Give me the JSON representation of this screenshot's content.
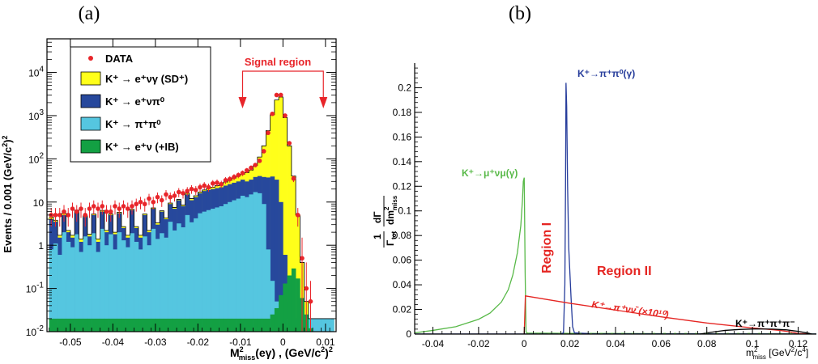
{
  "chart_data": [
    {
      "type": "histogram",
      "panel_label": "(a)",
      "xlabel": "M²miss(eγ) , (GeV/c²)²",
      "xlabel_parts": {
        "base": "M",
        "sup": "2",
        "sub": "miss",
        "rest": "(eγ) , (GeV/c",
        "sup2": "2",
        "end": ")",
        "sup3": "2"
      },
      "ylabel": "Events / 0.001 (GeV/c²)²",
      "xlim": [
        -0.0555,
        0.0125
      ],
      "ylim": [
        0.01,
        60000
      ],
      "yscale": "log",
      "x_ticks": [
        "-0.05",
        "-0.04",
        "-0.03",
        "-0.02",
        "-0.01",
        "0",
        "0.01"
      ],
      "y_ticks": [
        "10⁻²",
        "10⁻¹",
        "1",
        "10",
        "10²",
        "10³",
        "10⁴"
      ],
      "signal_region": {
        "label": "Signal region",
        "x_from": -0.0095,
        "x_to": 0.0095
      },
      "legend_position": "top-left",
      "legend": [
        {
          "label": "DATA",
          "kind": "marker",
          "color": "#e8252a"
        },
        {
          "label": "K⁺ → e⁺νγ (SD⁺)",
          "kind": "box",
          "color": "#ffff1a"
        },
        {
          "label": "K⁺ → e⁺νπ⁰",
          "kind": "box",
          "color": "#27489c"
        },
        {
          "label": "K⁺ → π⁺π⁰",
          "kind": "box",
          "color": "#55c6e0"
        },
        {
          "label": "K⁺ → e⁺ν (+IB)",
          "kind": "box",
          "color": "#13a043"
        }
      ],
      "stack_colors": {
        "sd": "#ffff1a",
        "e3": "#27489c",
        "pipi": "#55c6e0",
        "ke2": "#13a043"
      },
      "bins": {
        "start": -0.055,
        "width": 0.001
      },
      "series": [
        {
          "name": "K⁺ → π⁺π⁰",
          "values": [
            0.8,
            1.1,
            0.6,
            2,
            1.2,
            0.9,
            1.8,
            0.7,
            1.6,
            1,
            1.9,
            0.7,
            2.4,
            1,
            1.8,
            0.8,
            2,
            1.3,
            0.9,
            1.9,
            1.2,
            0.8,
            1.6,
            1,
            2.4,
            1.4,
            1.9,
            1.5,
            3.5,
            2.2,
            3.2,
            2.6,
            5,
            3.4,
            4.2,
            5.5,
            6,
            6.5,
            7,
            7.5,
            8,
            9,
            10,
            11,
            12,
            14,
            13,
            15,
            17,
            16,
            9,
            0.8,
            0.15,
            0.05,
            0.03,
            0.02,
            0.02,
            0.02,
            0.02,
            0.02,
            0.02,
            0.02,
            0.02,
            0.02,
            0.02,
            0.02,
            0.02
          ]
        },
        {
          "name": "K⁺ → e⁺νπ⁰",
          "values": [
            4,
            3.5,
            1.5,
            5,
            2,
            1.5,
            6,
            1.2,
            4.5,
            1.6,
            5,
            1.2,
            6,
            2,
            5,
            1.8,
            5.5,
            2.5,
            1.5,
            6.5,
            2.5,
            1.5,
            5,
            2,
            7,
            3,
            6,
            4,
            9,
            7,
            11,
            8,
            15,
            11,
            13,
            16,
            18,
            19,
            20,
            21,
            22,
            24,
            26,
            28,
            30,
            33,
            30,
            33,
            38,
            40,
            38,
            37,
            39,
            33,
            10,
            0.6,
            0.05,
            0.02,
            0.02,
            0.02,
            0.02,
            0.02,
            0.02,
            0.02,
            0.02,
            0.02,
            0.02
          ]
        },
        {
          "name": "K⁺ → e⁺νγ (SD⁺)",
          "values": [
            4.5,
            3.8,
            1.7,
            5.5,
            2.2,
            1.7,
            6.5,
            1.4,
            4.8,
            1.8,
            5.3,
            1.4,
            6.4,
            2.2,
            5.3,
            2,
            5.8,
            2.7,
            1.7,
            6.8,
            2.7,
            1.7,
            5.3,
            2.2,
            7.3,
            3.3,
            6.3,
            4.3,
            9.5,
            7.5,
            11.5,
            8.5,
            16,
            12,
            14,
            17,
            19,
            21,
            22,
            24,
            26,
            29,
            32,
            36,
            40,
            44,
            48,
            55,
            70,
            110,
            200,
            450,
            1050,
            2300,
            2700,
            900,
            200,
            40,
            5,
            0.4,
            0.05,
            0.02,
            0.02,
            0.02,
            0.02,
            0.02,
            0.02
          ]
        },
        {
          "name": "K⁺ → e⁺ν (+IB)",
          "values": [
            0.02,
            0.02,
            0.02,
            0.02,
            0.02,
            0.02,
            0.02,
            0.02,
            0.02,
            0.02,
            0.02,
            0.02,
            0.02,
            0.02,
            0.02,
            0.02,
            0.02,
            0.02,
            0.02,
            0.02,
            0.02,
            0.02,
            0.02,
            0.02,
            0.02,
            0.02,
            0.02,
            0.02,
            0.02,
            0.02,
            0.02,
            0.02,
            0.02,
            0.02,
            0.02,
            0.02,
            0.02,
            0.02,
            0.02,
            0.02,
            0.02,
            0.02,
            0.02,
            0.02,
            0.02,
            0.02,
            0.02,
            0.02,
            0.02,
            0.02,
            0.02,
            0.02,
            0.025,
            0.035,
            0.07,
            0.13,
            0.2,
            0.29,
            0.17,
            0.06,
            0.025,
            0.012,
            0.01,
            0.01,
            0.01,
            0.01,
            0.01
          ]
        },
        {
          "name": "DATA",
          "x": [
            -0.0545,
            -0.0535,
            -0.0525,
            -0.0515,
            -0.0505,
            -0.0495,
            -0.0485,
            -0.0475,
            -0.0465,
            -0.0455,
            -0.0445,
            -0.0435,
            -0.0425,
            -0.0415,
            -0.0405,
            -0.0395,
            -0.0385,
            -0.0375,
            -0.0365,
            -0.0355,
            -0.0345,
            -0.0335,
            -0.0325,
            -0.0315,
            -0.0305,
            -0.0295,
            -0.0285,
            -0.0275,
            -0.0265,
            -0.0255,
            -0.0245,
            -0.0235,
            -0.0225,
            -0.0215,
            -0.0205,
            -0.0195,
            -0.0185,
            -0.0175,
            -0.0165,
            -0.0155,
            -0.0145,
            -0.0135,
            -0.0125,
            -0.0115,
            -0.0105,
            -0.0095,
            -0.0085,
            -0.0075,
            -0.0065,
            -0.0055,
            -0.0045,
            -0.0035,
            -0.0025,
            -0.0015,
            -0.0005,
            0.0005,
            0.0015,
            0.0025,
            0.0035,
            0.0045,
            0.0055,
            0.0065
          ],
          "values": [
            5,
            5,
            5,
            6,
            5,
            7,
            6,
            7,
            5,
            7,
            8,
            7,
            8,
            6,
            6,
            8,
            7,
            8,
            7,
            8,
            9,
            10,
            9,
            12,
            10,
            13,
            11,
            15,
            13,
            14,
            17,
            16,
            18,
            20,
            19,
            22,
            24,
            22,
            27,
            28,
            26,
            32,
            34,
            38,
            42,
            47,
            54,
            62,
            72,
            90,
            150,
            400,
            1100,
            3000,
            3000,
            1000,
            230,
            35,
            5,
            0.5,
            0.1,
            0.05
          ],
          "err_lo": [
            2.3,
            2.3,
            2.3,
            2.5,
            2.3,
            2.7,
            2.5,
            2.7,
            2.3,
            2.7,
            2.9,
            2.7,
            2.9,
            2.5,
            2.5,
            2.9,
            2.7,
            2.9,
            2.7,
            2.9,
            3,
            3.2,
            3,
            3.5,
            3.2,
            3.6,
            3.3,
            3.9,
            3.6,
            3.7,
            4.1,
            4,
            4.2,
            4.5,
            4.4,
            4.7,
            4.9,
            4.7,
            5.2,
            5.3,
            5.1,
            5.7,
            5.8,
            6.2,
            6.5,
            6.9,
            7.3,
            7.9,
            8.5,
            9.5,
            12,
            20,
            33,
            55,
            55,
            32,
            15,
            6,
            2.3,
            0.5,
            0.1,
            0.05
          ],
          "err_hi": [
            2.3,
            2.3,
            2.3,
            2.5,
            2.3,
            2.7,
            2.5,
            2.7,
            2.3,
            2.7,
            2.9,
            2.7,
            2.9,
            2.5,
            2.5,
            2.9,
            2.7,
            2.9,
            2.7,
            2.9,
            3,
            3.2,
            3,
            3.5,
            3.2,
            3.6,
            3.3,
            3.9,
            3.6,
            3.7,
            4.1,
            4,
            4.2,
            4.5,
            4.4,
            4.7,
            4.9,
            4.7,
            5.2,
            5.3,
            5.1,
            5.7,
            5.8,
            6.2,
            6.5,
            6.9,
            7.3,
            7.9,
            8.5,
            9.5,
            12,
            20,
            33,
            55,
            55,
            32,
            15,
            6,
            2.3,
            1,
            0.3,
            0.1
          ]
        }
      ]
    },
    {
      "type": "line",
      "panel_label": "(b)",
      "xlabel": "m²miss [GeV²/c⁴]",
      "xlabel_parts": {
        "base": "m",
        "sup": "2",
        "sub": "miss",
        "rest": " [GeV",
        "sup2": "2",
        "mid": "/c",
        "sup3": "4",
        "end": "]"
      },
      "ylabel": "1/Γtot dΓ/dm²miss",
      "xlim": [
        -0.048,
        0.128
      ],
      "ylim": [
        0,
        0.22
      ],
      "x_ticks": [
        -0.04,
        -0.02,
        0,
        0.02,
        0.04,
        0.06,
        0.08,
        0.1,
        0.12
      ],
      "y_ticks": [
        0,
        0.02,
        0.04,
        0.06,
        0.08,
        0.1,
        0.12,
        0.14,
        0.16,
        0.18,
        0.2
      ],
      "region_labels": {
        "region1": "Region I",
        "region2": "Region II"
      },
      "colors": {
        "kmu2": "#58b948",
        "k2pi": "#263c9b",
        "pnn": "#e52522",
        "k3pi": "#000000"
      },
      "series": [
        {
          "name": "K⁺→μ⁺νμ(γ)",
          "color": "#58b948",
          "x": [
            -0.048,
            -0.04,
            -0.03,
            -0.02,
            -0.015,
            -0.01,
            -0.007,
            -0.005,
            -0.003,
            -0.0015,
            -0.0008,
            -0.0004,
            0,
            0.0004,
            0.0008,
            0.0015,
            0.02,
            0.05,
            0.1,
            0.128
          ],
          "values": [
            0.001,
            0.003,
            0.006,
            0.012,
            0.017,
            0.026,
            0.036,
            0.048,
            0.066,
            0.088,
            0.108,
            0.124,
            0.127,
            0.05,
            0.0015,
            0.0008,
            0.0006,
            0.0004,
            0.0002,
            0.0001
          ]
        },
        {
          "name": "K⁺→π⁺π⁰(γ)",
          "color": "#263c9b",
          "x": [
            -0.048,
            0.016,
            0.0172,
            0.0178,
            0.0181,
            0.0183,
            0.0186,
            0.019,
            0.0195,
            0.0205,
            0.0212,
            0.022,
            0.03,
            0.128
          ],
          "values": [
            0.0001,
            0.0001,
            0.001,
            0.04,
            0.12,
            0.204,
            0.185,
            0.12,
            0.07,
            0.03,
            0.006,
            0.001,
            0.0002,
            0.0001
          ]
        },
        {
          "name": "K⁺→π⁺νν̄ (×10¹⁰)",
          "color": "#e52522",
          "x": [
            0,
            0.0005,
            0.02,
            0.04,
            0.06,
            0.08,
            0.1,
            0.112,
            0.118,
            0.12,
            0.125
          ],
          "values": [
            0,
            0.031,
            0.025,
            0.0195,
            0.014,
            0.009,
            0.005,
            0.003,
            0.0013,
            0.0005,
            0.0001
          ]
        },
        {
          "name": "K⁺→π⁺π⁺π⁻",
          "color": "#000000",
          "x": [
            0.077,
            0.082,
            0.088,
            0.095,
            0.102,
            0.109,
            0.115,
            0.12,
            0.1245,
            0.126
          ],
          "values": [
            0,
            0.0015,
            0.003,
            0.0038,
            0.0042,
            0.004,
            0.0034,
            0.0022,
            0.0007,
            0
          ]
        }
      ]
    }
  ],
  "labels_a": {
    "panel": "(a)",
    "signal_region": "Signal region",
    "ylabel_main": "Events / 0.001 (GeV/c",
    "ylabel_sup": "2",
    "ylabel_end": ")",
    "ylabel_sup2": "2",
    "legend": [
      "DATA",
      "K⁺ → e⁺νγ (SD⁺)",
      "K⁺ → e⁺νπ⁰",
      "K⁺ → π⁺π⁰",
      "K⁺ → e⁺ν (+IB)"
    ],
    "y_ticks": [
      {
        "base": "10",
        "exp": "-2"
      },
      {
        "base": "10",
        "exp": "-1"
      },
      {
        "base": "1",
        "exp": ""
      },
      {
        "base": "10",
        "exp": ""
      },
      {
        "base": "10",
        "exp": "2"
      },
      {
        "base": "10",
        "exp": "3"
      },
      {
        "base": "10",
        "exp": "4"
      }
    ]
  },
  "labels_b": {
    "panel": "(b)",
    "region1": "Region I",
    "region2": "Region II",
    "kmu2": "K⁺→μ⁺νμ(γ)",
    "k2pi": "K⁺→π⁺π⁰(γ)",
    "pnn": "K⁺→π⁺νν̄ (×10¹⁰)",
    "k3pi": "K⁺→π⁺π⁺π⁻",
    "ylabel_one": "1",
    "ylabel_gamma": "Γ",
    "ylabel_tot": "tot",
    "ylabel_dgamma": "dΓ",
    "ylabel_dm": "dm",
    "ylabel_sup": "2",
    "ylabel_sub": "miss"
  }
}
